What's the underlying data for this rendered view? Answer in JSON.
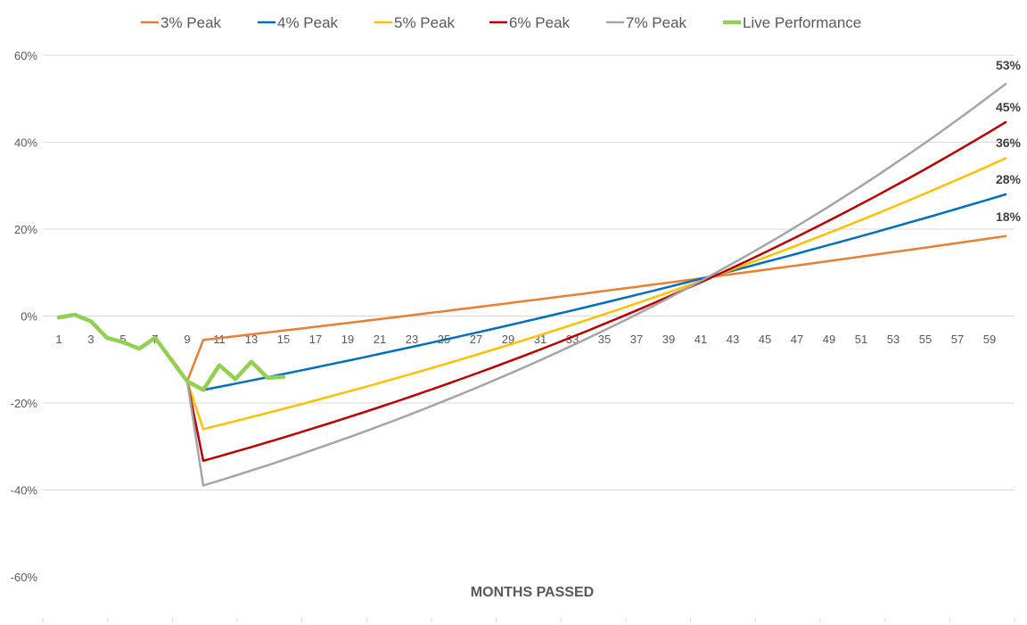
{
  "chart_data": {
    "type": "line",
    "title": "",
    "xlabel": "MONTHS PASSED",
    "ylabel": "",
    "xlim": [
      1,
      60
    ],
    "ylim": [
      -60,
      60
    ],
    "y_ticks": [
      "60%",
      "40%",
      "20%",
      "0%",
      "-20%",
      "-40%",
      "-60%"
    ],
    "y_tick_values": [
      60,
      40,
      20,
      0,
      -20,
      -40,
      -60
    ],
    "x_ticks": [
      "1",
      "3",
      "5",
      "7",
      "9",
      "11",
      "13",
      "15",
      "17",
      "19",
      "21",
      "23",
      "25",
      "27",
      "29",
      "31",
      "33",
      "35",
      "37",
      "39",
      "41",
      "43",
      "45",
      "47",
      "49",
      "51",
      "53",
      "55",
      "57",
      "59"
    ],
    "x_tick_values": [
      1,
      3,
      5,
      7,
      9,
      11,
      13,
      15,
      17,
      19,
      21,
      23,
      25,
      27,
      29,
      31,
      33,
      35,
      37,
      39,
      41,
      43,
      45,
      47,
      49,
      51,
      53,
      55,
      57,
      59
    ],
    "grid": "horizontal",
    "legend_position": "top",
    "series": [
      {
        "name": "3% Peak",
        "color": "#ED7D31",
        "start_x": 9,
        "start_y": -15,
        "low_x": 10,
        "low_y": -5.5,
        "end_x": 60,
        "end_y": 18.4,
        "end_label": "18%"
      },
      {
        "name": "4% Peak",
        "color": "#0070C0",
        "start_x": 9,
        "start_y": -15,
        "low_x": 10,
        "low_y": -17,
        "end_x": 60,
        "end_y": 28,
        "end_label": "28%"
      },
      {
        "name": "5% Peak",
        "color": "#FFC000",
        "start_x": 9,
        "start_y": -15,
        "low_x": 10,
        "low_y": -26,
        "end_x": 60,
        "end_y": 36.3,
        "end_label": "36%"
      },
      {
        "name": "6% Peak",
        "color": "#C00000",
        "start_x": 9,
        "start_y": -15,
        "low_x": 10,
        "low_y": -33.3,
        "end_x": 60,
        "end_y": 44.6,
        "end_label": "45%"
      },
      {
        "name": "7% Peak",
        "color": "#A5A5A5",
        "start_x": 9,
        "start_y": -15,
        "low_x": 10,
        "low_y": -39,
        "end_x": 60,
        "end_y": 53.4,
        "end_label": "53%"
      },
      {
        "name": "Live Performance",
        "color": "#92D050",
        "x": [
          1,
          2,
          3,
          4,
          5,
          6,
          7,
          8,
          9,
          10,
          11,
          12,
          13,
          14,
          15
        ],
        "y": [
          -0.3,
          0.3,
          -1.2,
          -5,
          -6,
          -7.5,
          -5,
          -10,
          -15,
          -17,
          -11.3,
          -14.5,
          -10.5,
          -14.2,
          -14
        ]
      }
    ],
    "convergence": {
      "x": 44,
      "y": 10.3
    }
  }
}
